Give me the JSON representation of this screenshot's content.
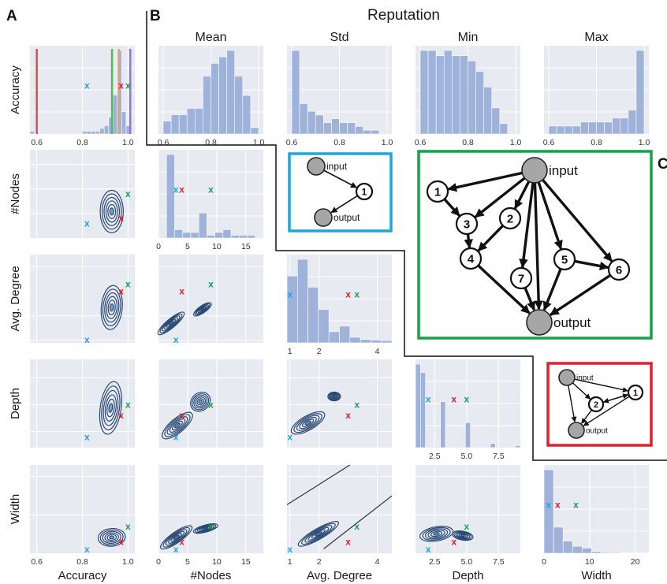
{
  "panel_letters": {
    "a": "A",
    "b": "B",
    "c": "C"
  },
  "reputation_title": "Reputation",
  "column_labels": [
    "Accuracy",
    "#Nodes",
    "Avg. Degree",
    "Depth",
    "Width"
  ],
  "row_labels": [
    "Accuracy",
    "#Nodes",
    "Avg. Degree",
    "Depth",
    "Width"
  ],
  "colors": {
    "blue_x": "#1aa7de",
    "red_x": "#e0212b",
    "green_x": "#14a24a",
    "bar": "#9fb3da",
    "bg": "#e8eaf2",
    "kde": "#2b4a73"
  },
  "x_marker": "x",
  "chart_data": {
    "type": "pairplot",
    "variables": [
      {
        "name": "Accuracy",
        "range": [
          0.57,
          1.03
        ],
        "ticks": [
          "0.6",
          "0.8",
          "1.0"
        ],
        "tick_values": [
          0.6,
          0.8,
          1.0
        ]
      },
      {
        "name": "#Nodes",
        "range": [
          0,
          18
        ],
        "ticks": [
          "0",
          "5",
          "10",
          "15"
        ],
        "tick_values": [
          0,
          5,
          10,
          15
        ]
      },
      {
        "name": "Avg. Degree",
        "range": [
          0.9,
          4.5
        ],
        "ticks": [
          "1",
          "2",
          "4"
        ],
        "tick_values": [
          1,
          2,
          4
        ]
      },
      {
        "name": "Depth",
        "range": [
          1,
          9.2
        ],
        "ticks": [
          "2.5",
          "5.0",
          "7.5"
        ],
        "tick_values": [
          2.5,
          5.0,
          7.5
        ]
      },
      {
        "name": "Width",
        "range": [
          0,
          23
        ],
        "ticks": [
          "0",
          "10",
          "20"
        ],
        "tick_values": [
          0,
          10,
          20
        ]
      }
    ],
    "highlighted_models": [
      {
        "color": "blue",
        "accuracy": 0.82,
        "nodes": 3,
        "avg_degree": 1.0,
        "depth": 2,
        "width": 1
      },
      {
        "color": "red",
        "accuracy": 0.97,
        "nodes": 4,
        "avg_degree": 3.0,
        "depth": 4,
        "width": 3
      },
      {
        "color": "green",
        "accuracy": 1.0,
        "nodes": 9,
        "avg_degree": 3.3,
        "depth": 5,
        "width": 7
      }
    ],
    "diagonal_histograms": {
      "Accuracy": [
        1,
        0,
        0,
        0,
        0,
        0,
        0,
        0,
        0,
        0,
        0,
        0,
        1,
        1,
        1,
        1,
        2,
        3,
        6,
        14,
        30,
        8,
        3,
        0
      ],
      "#Nodes": [
        0,
        30,
        3,
        2,
        2,
        9,
        1,
        2,
        3,
        1,
        1,
        1,
        0
      ],
      "Avg. Degree": [
        12,
        15,
        10,
        6,
        2,
        3,
        1,
        0.6,
        0.5,
        0.4
      ],
      "Depth": [
        40,
        36,
        0,
        0,
        0,
        22,
        0,
        0,
        0,
        0,
        12,
        0,
        0,
        0,
        0,
        2,
        0,
        0,
        0,
        0,
        1
      ],
      "Width": [
        48,
        15,
        7,
        4,
        3,
        1,
        0.5,
        0.5,
        0.3,
        0.3,
        0.2
      ]
    },
    "accuracy_vertical_lines": [
      {
        "value": 0.6,
        "color": "#d9534f"
      },
      {
        "value": 0.93,
        "color": "#5cb85c"
      },
      {
        "value": 0.96,
        "color": "#e8a06a"
      },
      {
        "value": 1.01,
        "color": "#8b7dc8"
      }
    ],
    "reputation": [
      {
        "title": "Mean",
        "ticks": [
          "0.6",
          "0.8",
          "1.0"
        ],
        "values": [
          2,
          3,
          3,
          4,
          4,
          9,
          11,
          12,
          13,
          9,
          6,
          1
        ]
      },
      {
        "title": "Std",
        "ticks": [
          "0.6",
          "0.8",
          "1.0"
        ],
        "values": [
          22,
          8,
          6,
          5,
          3,
          4,
          3,
          3,
          2,
          1,
          1,
          0
        ]
      },
      {
        "title": "Min",
        "ticks": [
          "0.6",
          "0.8",
          "1.0"
        ],
        "values": [
          16,
          16,
          15,
          16,
          15,
          15,
          14,
          12,
          9,
          5,
          2,
          0
        ]
      },
      {
        "title": "Max",
        "ticks": [
          "0.6",
          "0.8",
          "1.0"
        ],
        "values": [
          2,
          2,
          2,
          2,
          3,
          3,
          3,
          3,
          4,
          4,
          6,
          21
        ]
      }
    ]
  },
  "graphs": {
    "blue": {
      "input": "input",
      "output": "output",
      "nodes": [
        "1"
      ]
    },
    "green": {
      "input": "input",
      "output": "output",
      "nodes": [
        "1",
        "2",
        "3",
        "4",
        "5",
        "6",
        "7"
      ]
    },
    "red": {
      "input": "input",
      "output": "output",
      "nodes": [
        "1",
        "2"
      ]
    }
  }
}
